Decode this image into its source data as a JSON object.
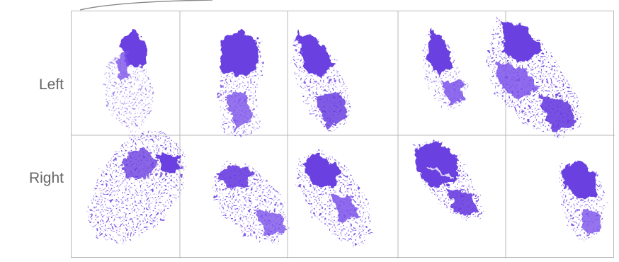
{
  "rows": [
    {
      "label": "Left"
    },
    {
      "label": "Right"
    }
  ],
  "colors": {
    "ink": "#6a3fe0",
    "ink_light": "#9b7cf0",
    "grid_line": "#b8b8b8",
    "label_text": "#666666"
  }
}
